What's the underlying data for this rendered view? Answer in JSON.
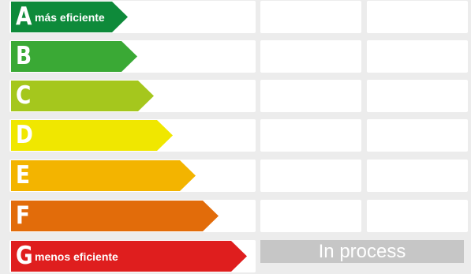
{
  "ratings": [
    {
      "letter": "A",
      "desc": "más eficiente",
      "color": "#0e8a3a"
    },
    {
      "letter": "B",
      "desc": "",
      "color": "#3aa935"
    },
    {
      "letter": "C",
      "desc": "",
      "color": "#a5c71d"
    },
    {
      "letter": "D",
      "desc": "",
      "color": "#f0e700"
    },
    {
      "letter": "E",
      "desc": "",
      "color": "#f3b400"
    },
    {
      "letter": "F",
      "desc": "",
      "color": "#e26c0a"
    },
    {
      "letter": "G",
      "desc": "menos eficiente",
      "color": "#df1e1e"
    }
  ],
  "status_text": "In process"
}
